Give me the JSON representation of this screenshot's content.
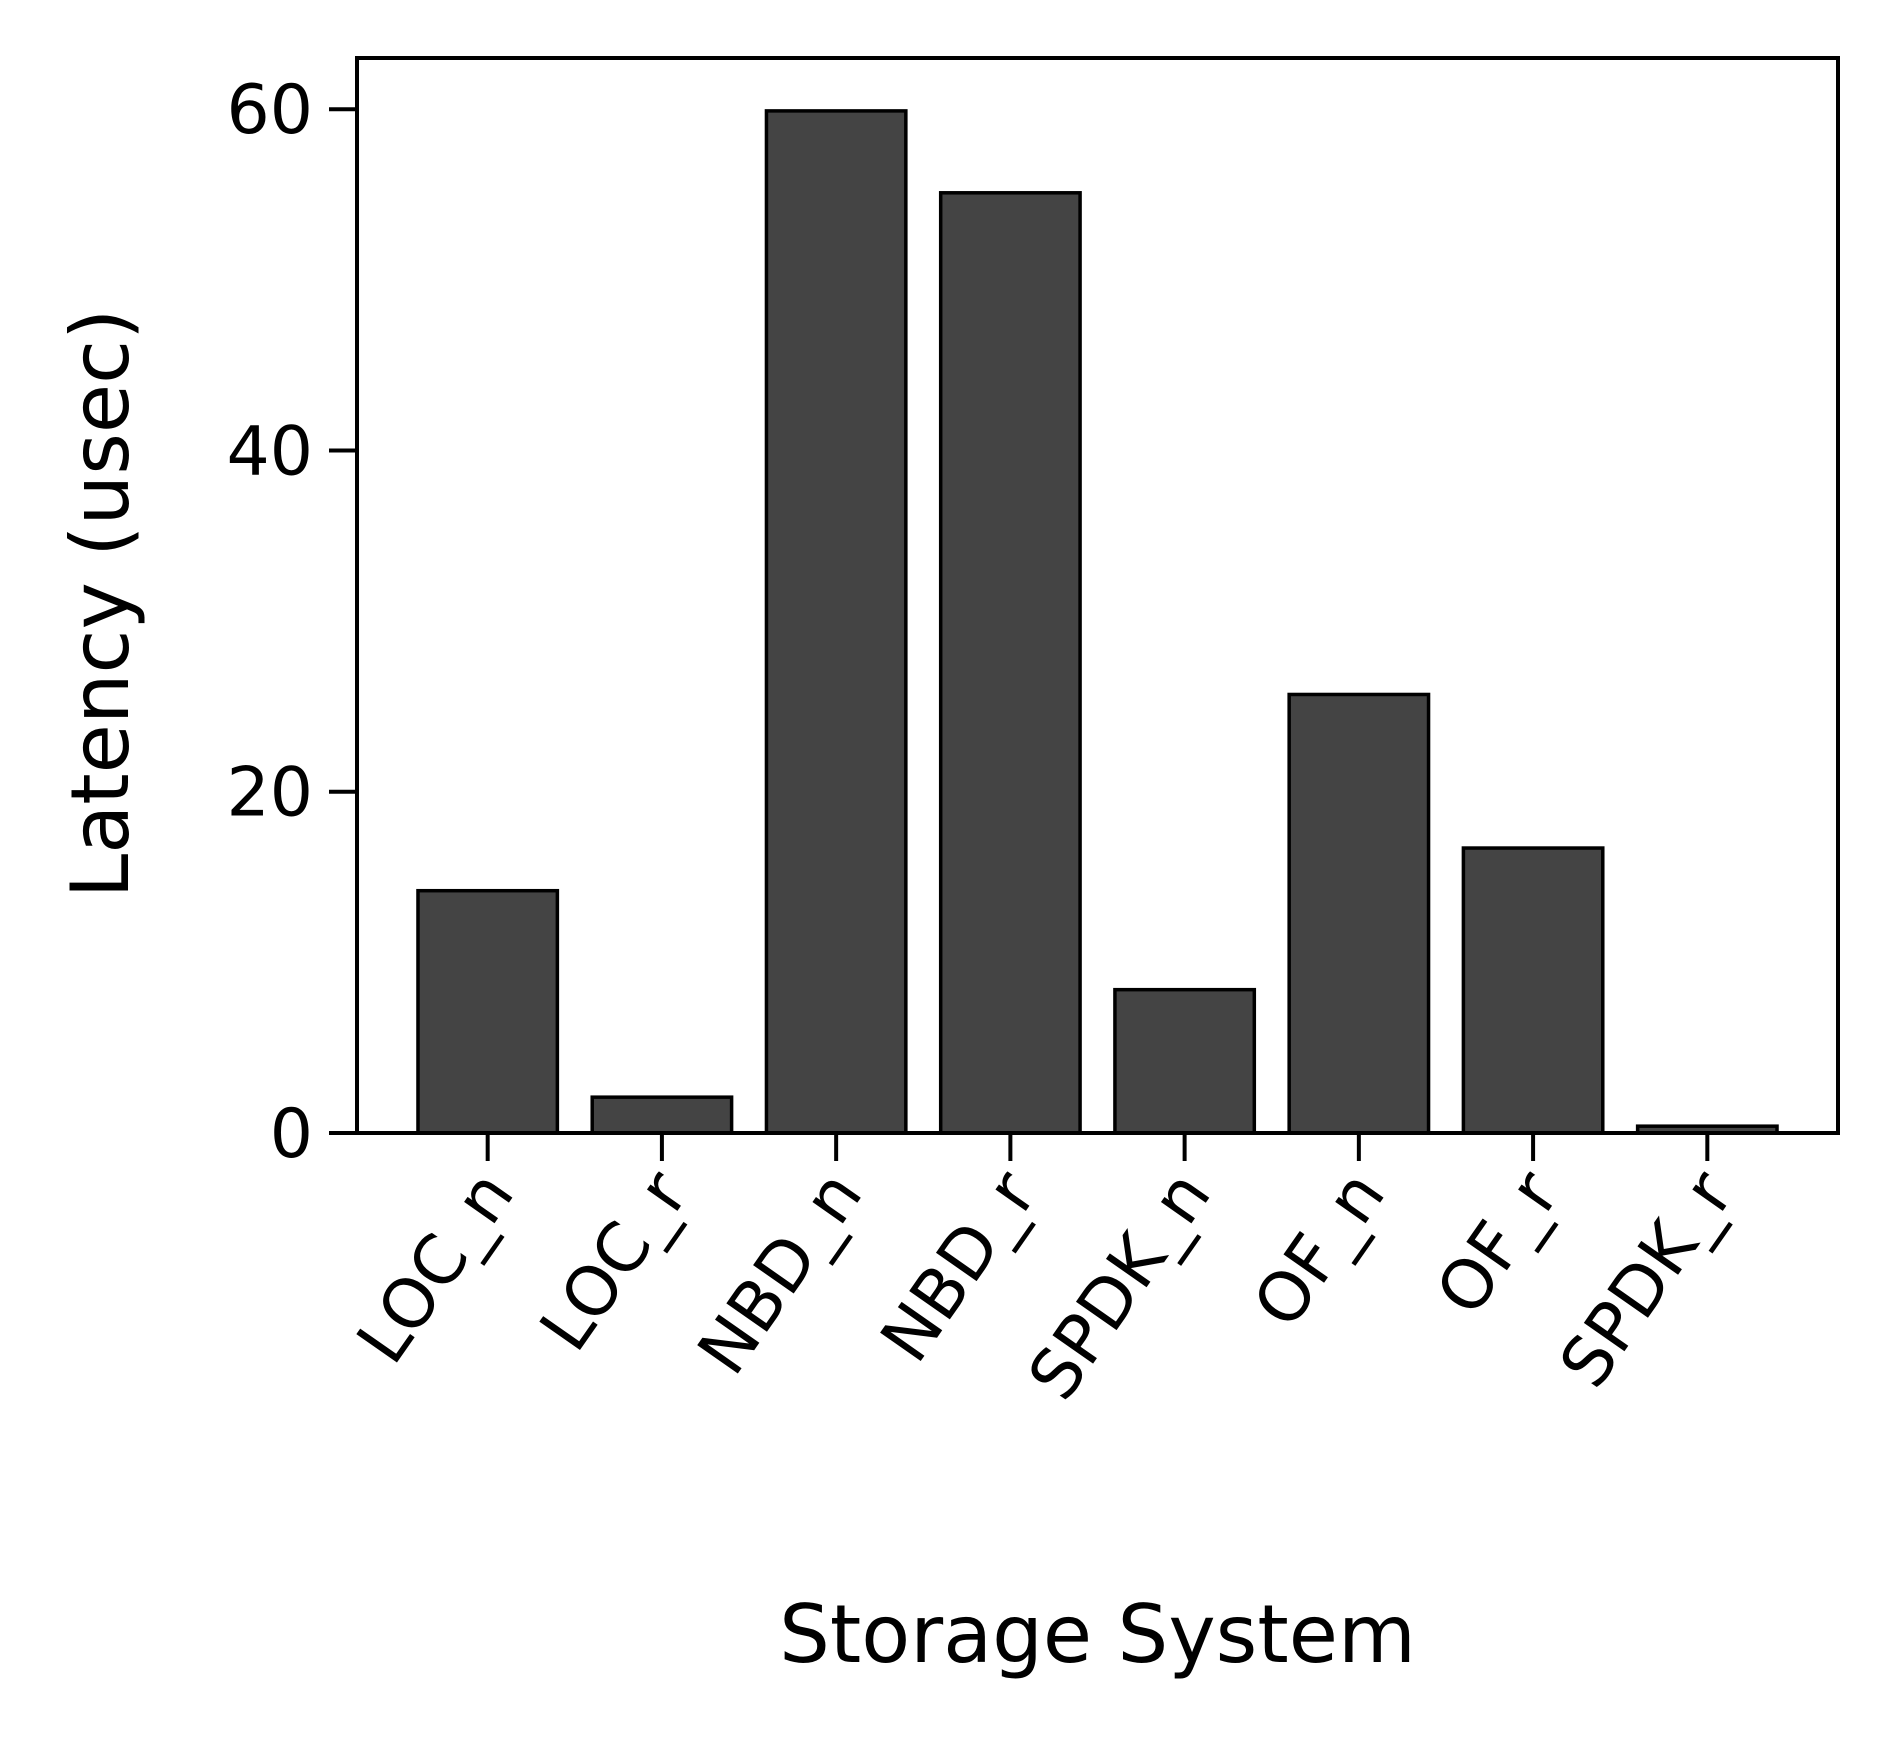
{
  "chart_data": {
    "type": "bar",
    "title": "",
    "xlabel": "Storage System",
    "ylabel": "Latency (usec)",
    "categories": [
      "LOC_n",
      "LOC_r",
      "NBD_n",
      "NBD_r",
      "SPDK_n",
      "OF_n",
      "OF_r",
      "SPDK_r"
    ],
    "values": [
      14.2,
      2.1,
      59.9,
      55.1,
      8.4,
      25.7,
      16.7,
      0.4
    ],
    "ylim": [
      0,
      63
    ],
    "yticks": [
      0,
      20,
      40,
      60
    ],
    "grid": false,
    "legend": "none",
    "bar_color": "#444444",
    "edge_color": "#000000"
  }
}
